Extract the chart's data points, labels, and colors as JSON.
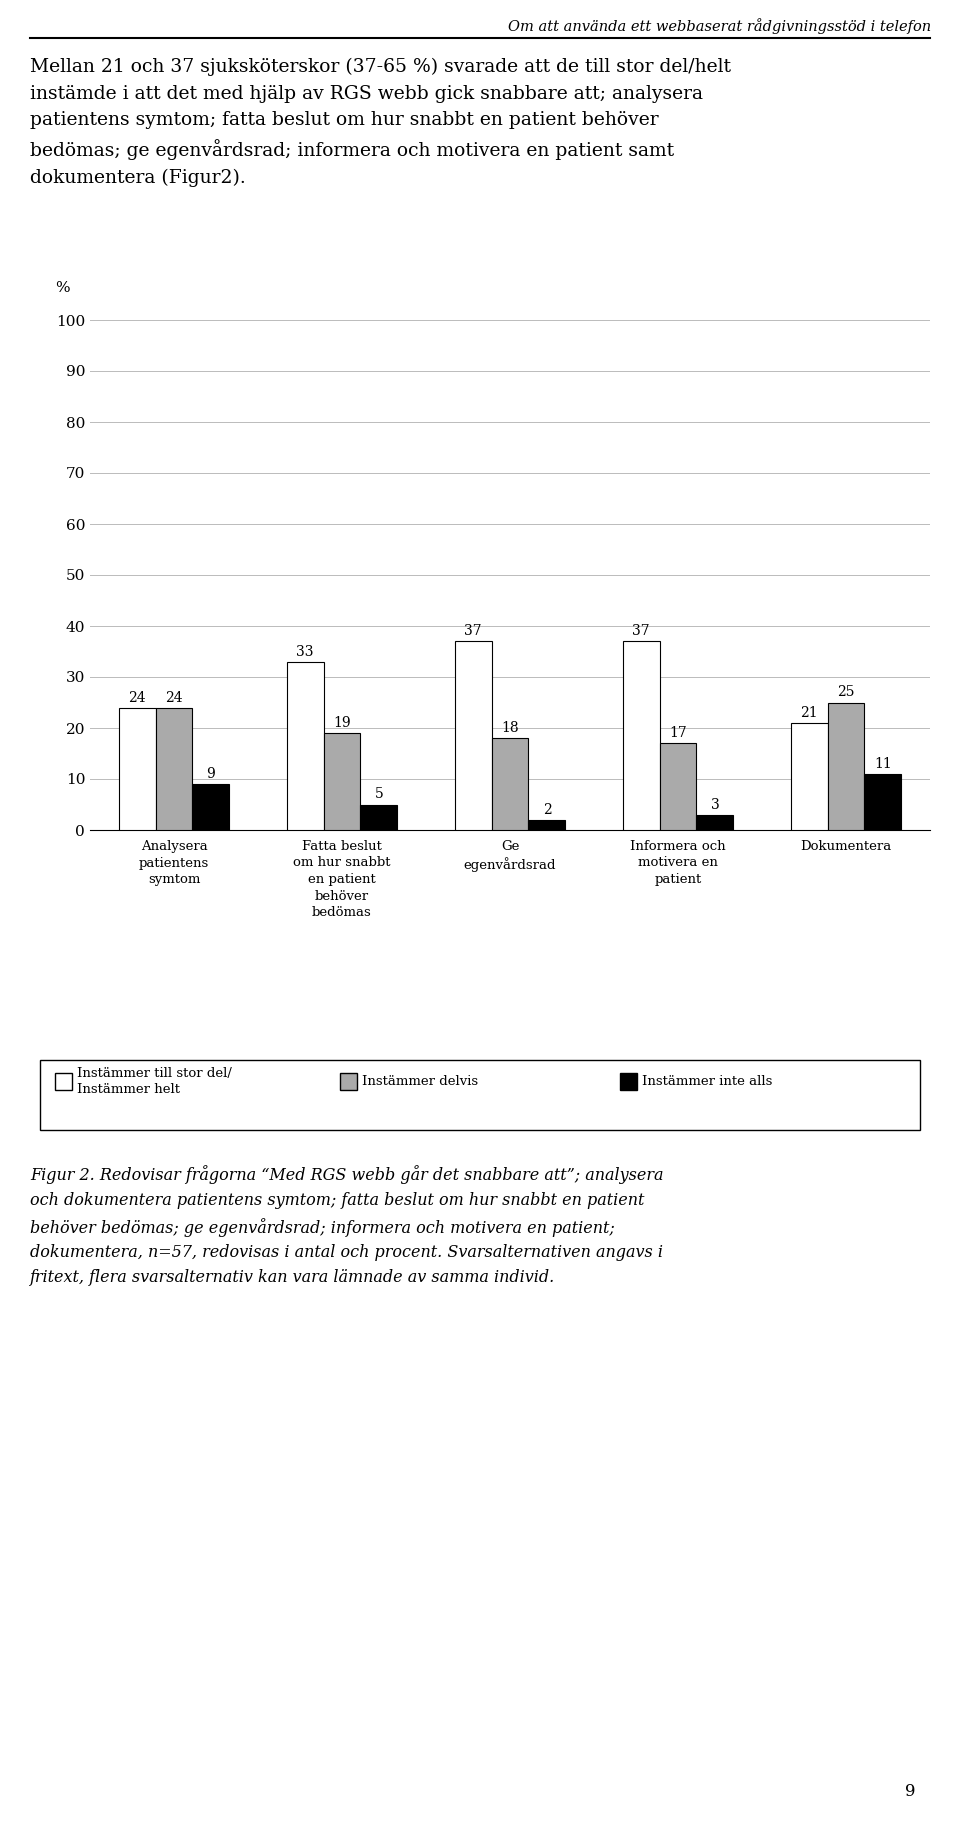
{
  "header_text": "Om att använda ett webbaserat rådgivningsstöd i telefon",
  "ylabel": "%",
  "ylim": [
    0,
    100
  ],
  "yticks": [
    0,
    10,
    20,
    30,
    40,
    50,
    60,
    70,
    80,
    90,
    100
  ],
  "categories": [
    "Analysera\npatientens\nsymtom",
    "Fatta beslut\nom hur snabbt\nen patient\nbehöver\nbedömas",
    "Ge\negenvårdsrad",
    "Informera och\nmotivera en\npatient",
    "Dokumentera"
  ],
  "series": [
    {
      "name": "Instämmer till stor del/\nInstämmer helt",
      "values": [
        24,
        33,
        37,
        37,
        21
      ],
      "color": "#FFFFFF",
      "edgecolor": "#000000"
    },
    {
      "name": "Instämmer delvis",
      "values": [
        24,
        19,
        18,
        17,
        25
      ],
      "color": "#AAAAAA",
      "edgecolor": "#000000"
    },
    {
      "name": "Instämmer inte alls",
      "values": [
        9,
        5,
        2,
        3,
        11
      ],
      "color": "#000000",
      "edgecolor": "#000000"
    }
  ],
  "page_number": "9",
  "bar_width": 0.22
}
